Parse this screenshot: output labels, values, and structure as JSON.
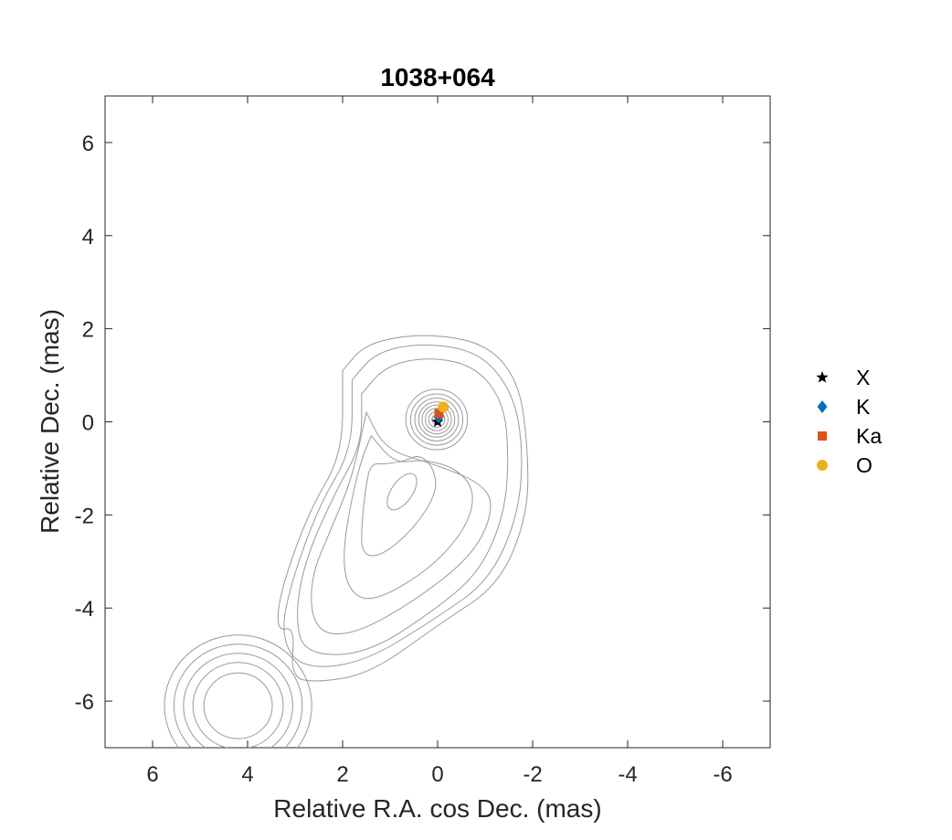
{
  "chart_data": {
    "type": "scatter",
    "title": "1038+064",
    "xlabel": "Relative R.A. cos Dec. (mas)",
    "ylabel": "Relative Dec. (mas)",
    "xlim": [
      7,
      -7
    ],
    "ylim": [
      -7,
      7
    ],
    "x_reversed": true,
    "xticks": [
      6,
      4,
      2,
      0,
      -2,
      -4,
      -6
    ],
    "yticks": [
      -6,
      -4,
      -2,
      0,
      2,
      4,
      6
    ],
    "grid": false,
    "legend_position": "outside-right",
    "background": "contour map of source intensity (grey lines)",
    "contour_color": "#9a9a9a",
    "series": [
      {
        "name": "X",
        "marker": "star",
        "color": "#000000",
        "x": [
          0.0
        ],
        "y": [
          0.0
        ]
      },
      {
        "name": "K",
        "marker": "diamond",
        "color": "#0072BD",
        "x": [
          -0.02
        ],
        "y": [
          0.1
        ]
      },
      {
        "name": "Ka",
        "marker": "square",
        "color": "#D95319",
        "x": [
          -0.03
        ],
        "y": [
          0.18
        ]
      },
      {
        "name": "O",
        "marker": "circle",
        "color": "#EDB120",
        "x": [
          -0.12
        ],
        "y": [
          0.32
        ]
      }
    ]
  }
}
